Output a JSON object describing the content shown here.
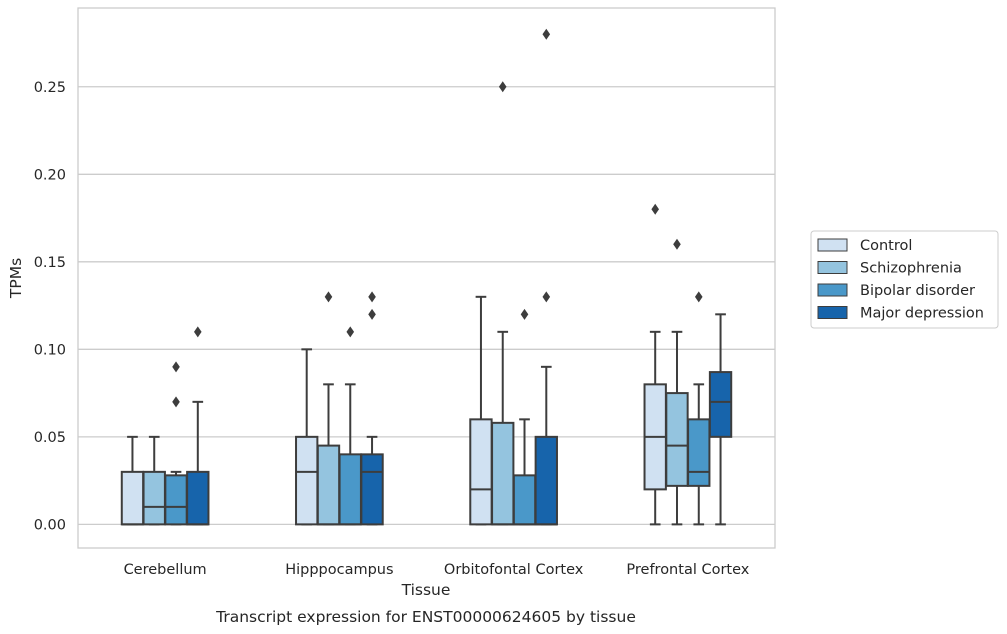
{
  "chart_data": {
    "type": "boxplot",
    "title": "",
    "caption": "Transcript expression for ENST00000624605 by tissue",
    "xlabel": "Tissue",
    "ylabel": "TPMs",
    "ylim": [
      -0.0135,
      0.295
    ],
    "yticks": [
      0.0,
      0.05,
      0.1,
      0.15,
      0.2,
      0.25
    ],
    "ytick_labels": [
      "0.00",
      "0.05",
      "0.10",
      "0.15",
      "0.20",
      "0.25"
    ],
    "grid": "horizontal",
    "legend_position": "outside-right",
    "categories": [
      "Cerebellum",
      "Hipppocampus",
      "Orbitofontal Cortex",
      "Prefrontal Cortex"
    ],
    "series": [
      {
        "name": "Control",
        "color": "#d0e1f2",
        "boxes": [
          {
            "whisker_low": 0.0,
            "q1": 0.0,
            "median": 0.0,
            "q3": 0.03,
            "whisker_high": 0.05,
            "outliers": []
          },
          {
            "whisker_low": 0.0,
            "q1": 0.0,
            "median": 0.03,
            "q3": 0.05,
            "whisker_high": 0.1,
            "outliers": []
          },
          {
            "whisker_low": 0.0,
            "q1": 0.0,
            "median": 0.02,
            "q3": 0.06,
            "whisker_high": 0.13,
            "outliers": []
          },
          {
            "whisker_low": 0.0,
            "q1": 0.02,
            "median": 0.05,
            "q3": 0.08,
            "whisker_high": 0.11,
            "outliers": [
              0.18
            ]
          }
        ]
      },
      {
        "name": "Schizophrenia",
        "color": "#94c4df",
        "boxes": [
          {
            "whisker_low": 0.0,
            "q1": 0.0,
            "median": 0.01,
            "q3": 0.03,
            "whisker_high": 0.05,
            "outliers": []
          },
          {
            "whisker_low": 0.0,
            "q1": 0.0,
            "median": 0.0,
            "q3": 0.045,
            "whisker_high": 0.08,
            "outliers": [
              0.13
            ]
          },
          {
            "whisker_low": 0.0,
            "q1": 0.0,
            "median": 0.0,
            "q3": 0.058,
            "whisker_high": 0.11,
            "outliers": [
              0.25
            ]
          },
          {
            "whisker_low": 0.0,
            "q1": 0.022,
            "median": 0.045,
            "q3": 0.075,
            "whisker_high": 0.11,
            "outliers": [
              0.16
            ]
          }
        ]
      },
      {
        "name": "Bipolar disorder",
        "color": "#4a98c9",
        "boxes": [
          {
            "whisker_low": 0.0,
            "q1": 0.0,
            "median": 0.01,
            "q3": 0.028,
            "whisker_high": 0.03,
            "outliers": [
              0.07,
              0.09
            ]
          },
          {
            "whisker_low": 0.0,
            "q1": 0.0,
            "median": 0.0,
            "q3": 0.04,
            "whisker_high": 0.08,
            "outliers": [
              0.11
            ]
          },
          {
            "whisker_low": 0.0,
            "q1": 0.0,
            "median": 0.0,
            "q3": 0.028,
            "whisker_high": 0.06,
            "outliers": [
              0.12
            ]
          },
          {
            "whisker_low": 0.0,
            "q1": 0.022,
            "median": 0.03,
            "q3": 0.06,
            "whisker_high": 0.08,
            "outliers": [
              0.13
            ]
          }
        ]
      },
      {
        "name": "Major depression",
        "color": "#1764ab",
        "boxes": [
          {
            "whisker_low": 0.0,
            "q1": 0.0,
            "median": 0.0,
            "q3": 0.03,
            "whisker_high": 0.07,
            "outliers": [
              0.11
            ]
          },
          {
            "whisker_low": 0.0,
            "q1": 0.0,
            "median": 0.03,
            "q3": 0.04,
            "whisker_high": 0.05,
            "outliers": [
              0.12,
              0.13
            ]
          },
          {
            "whisker_low": 0.0,
            "q1": 0.0,
            "median": 0.0,
            "q3": 0.05,
            "whisker_high": 0.09,
            "outliers": [
              0.13,
              0.28
            ]
          },
          {
            "whisker_low": 0.0,
            "q1": 0.05,
            "median": 0.07,
            "q3": 0.087,
            "whisker_high": 0.12,
            "outliers": []
          }
        ]
      }
    ]
  }
}
